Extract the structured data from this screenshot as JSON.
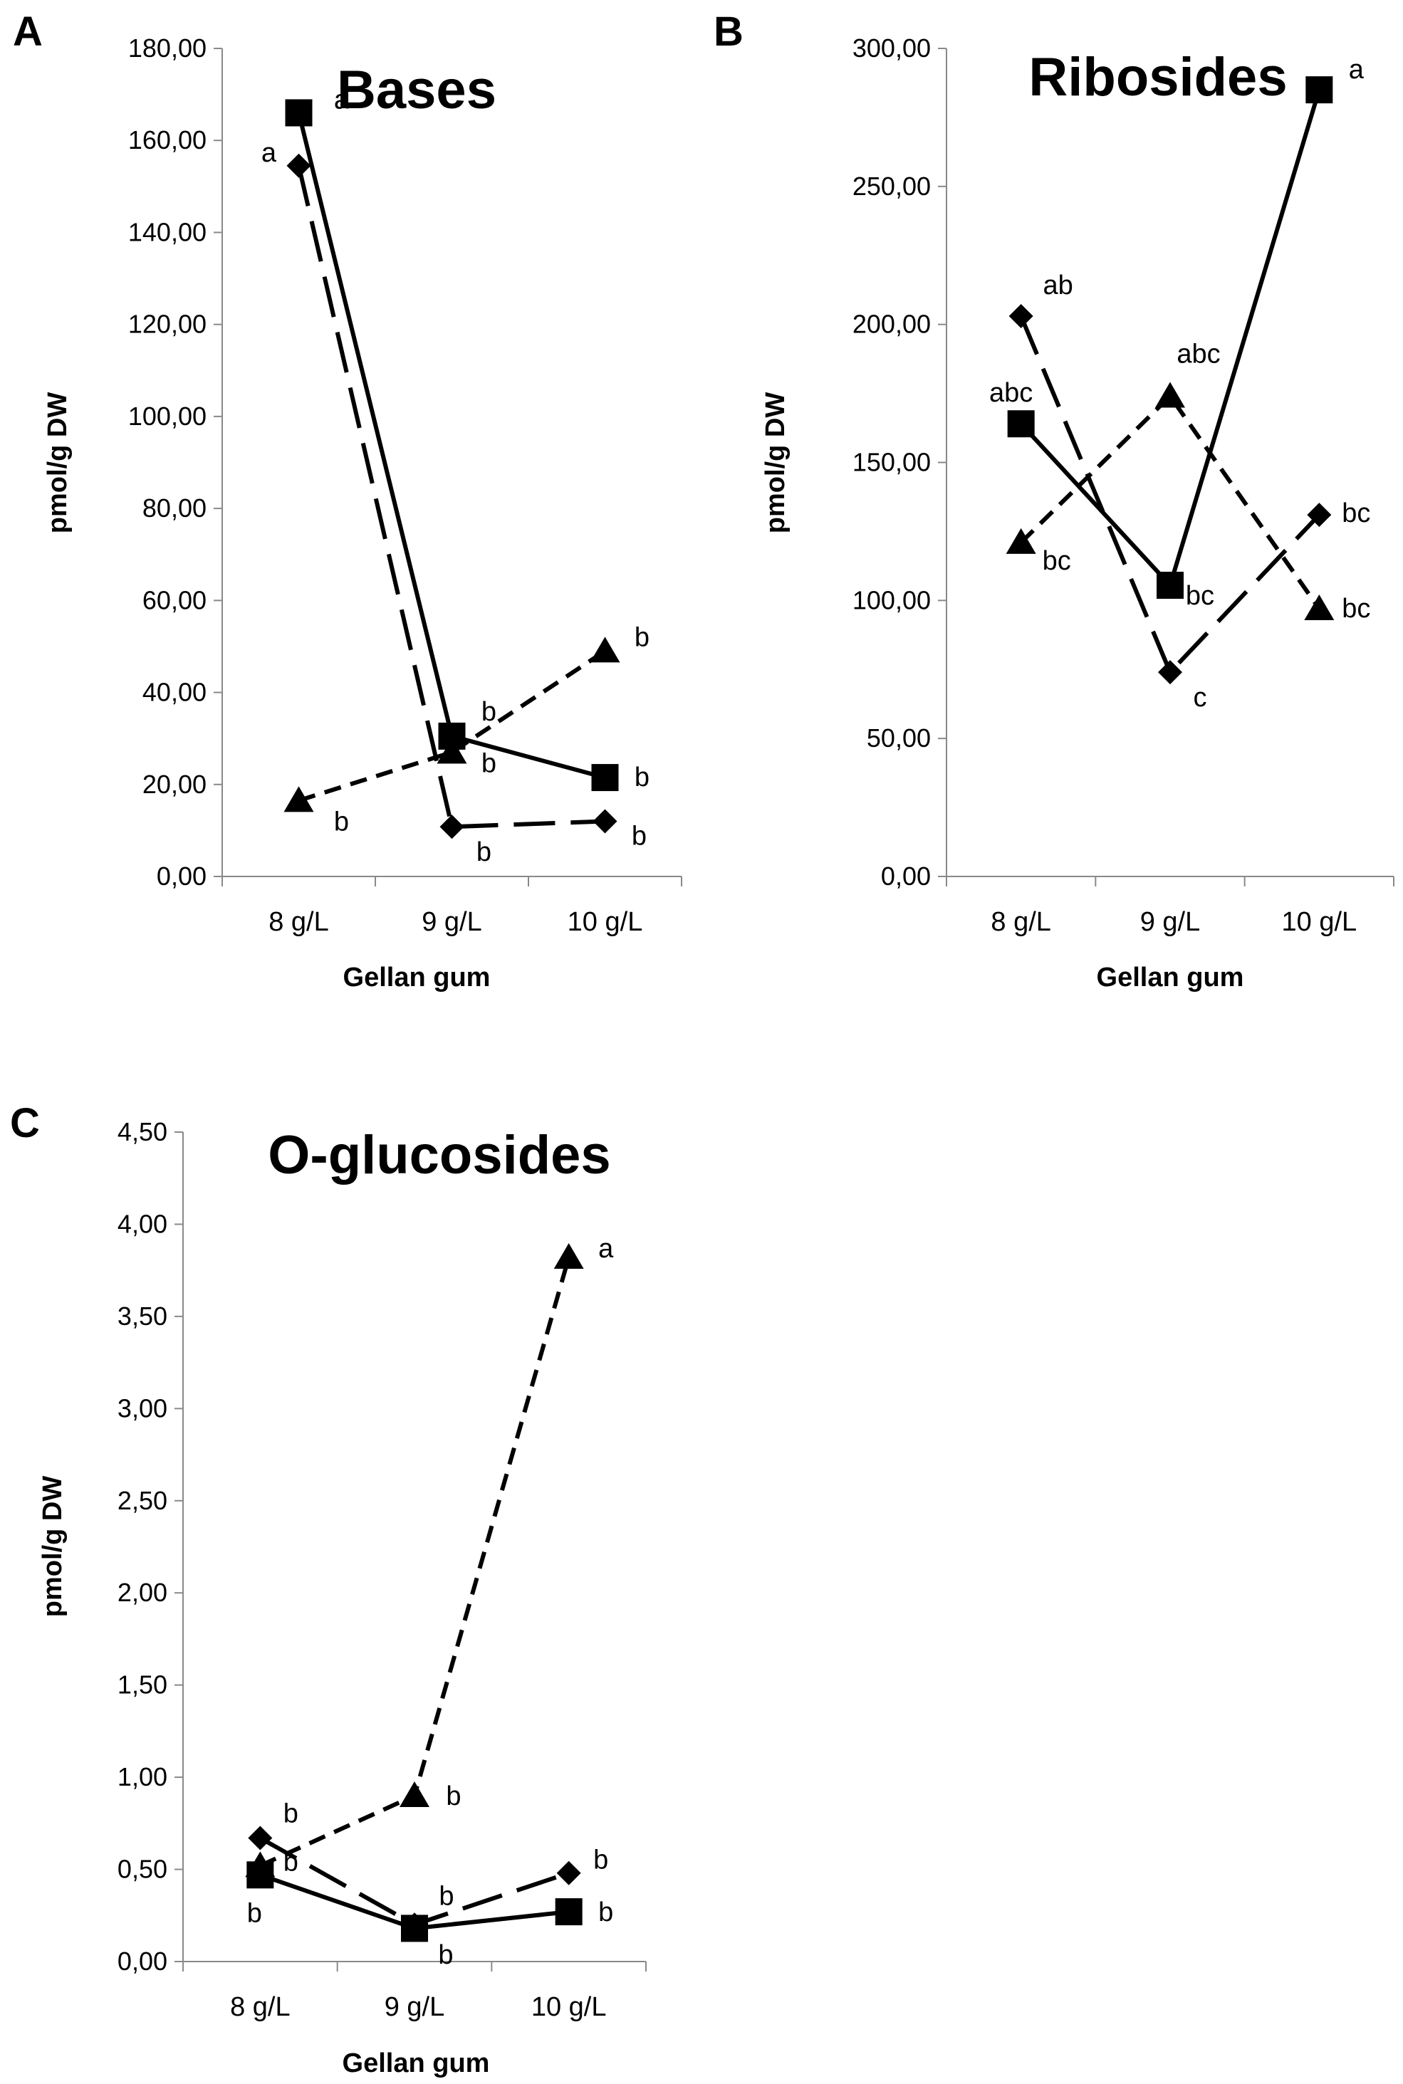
{
  "figure": {
    "colors": {
      "ink": "#000000",
      "axis": "#898989",
      "background": "#ffffff"
    }
  },
  "chart_data": [
    {
      "panel": "A",
      "type": "line",
      "title": "Bases",
      "xlabel": "Gellan gum",
      "ylabel": "pmol/g DW",
      "categories": [
        "8 g/L",
        "9 g/L",
        "10 g/L"
      ],
      "ylim": [
        0,
        180
      ],
      "yticks": [
        "0,00",
        "20,00",
        "40,00",
        "60,00",
        "80,00",
        "100,00",
        "120,00",
        "140,00",
        "160,00",
        "180,00"
      ],
      "grid": false,
      "series": [
        {
          "name": "diamond, long dash",
          "marker": "diamond",
          "line": "long-dash",
          "values": [
            154.5,
            10.8,
            12.0
          ],
          "labels": [
            "a",
            "b",
            "b"
          ]
        },
        {
          "name": "square, solid",
          "marker": "square",
          "line": "solid",
          "values": [
            166.0,
            30.5,
            21.5
          ],
          "labels": [
            "a",
            "b",
            "b"
          ]
        },
        {
          "name": "triangle, short dash",
          "marker": "triangle",
          "line": "short-dash",
          "values": [
            16.5,
            27.0,
            49.0
          ],
          "labels": [
            "b",
            "b",
            "b"
          ]
        }
      ]
    },
    {
      "panel": "B",
      "type": "line",
      "title": "Ribosides",
      "xlabel": "Gellan gum",
      "ylabel": "pmol/g DW",
      "categories": [
        "8 g/L",
        "9 g/L",
        "10 g/L"
      ],
      "ylim": [
        0,
        300
      ],
      "yticks": [
        "0,00",
        "50,00",
        "100,00",
        "150,00",
        "200,00",
        "250,00",
        "300,00"
      ],
      "grid": false,
      "series": [
        {
          "name": "diamond, long dash",
          "marker": "diamond",
          "line": "long-dash",
          "values": [
            203.0,
            74.0,
            131.0
          ],
          "labels": [
            "ab",
            "c",
            "bc"
          ]
        },
        {
          "name": "square, solid",
          "marker": "square",
          "line": "solid",
          "values": [
            164.0,
            105.5,
            285.0
          ],
          "labels": [
            "abc",
            "bc",
            "a"
          ]
        },
        {
          "name": "triangle, short dash",
          "marker": "triangle",
          "line": "short-dash",
          "values": [
            121.0,
            174.0,
            97.0
          ],
          "labels": [
            "bc",
            "abc",
            "bc"
          ]
        }
      ]
    },
    {
      "panel": "C",
      "type": "line",
      "title": "O-glucosides",
      "xlabel": "Gellan gum",
      "ylabel": "pmol/g DW",
      "categories": [
        "8 g/L",
        "9 g/L",
        "10 g/L"
      ],
      "ylim": [
        0,
        4.5
      ],
      "yticks": [
        "0,00",
        "0,50",
        "1,00",
        "1,50",
        "2,00",
        "2,50",
        "3,00",
        "3,50",
        "4,00",
        "4,50"
      ],
      "grid": false,
      "series": [
        {
          "name": "diamond, long dash",
          "marker": "diamond",
          "line": "long-dash",
          "values": [
            0.67,
            0.2,
            0.48
          ],
          "labels": [
            "b",
            "b",
            "b"
          ]
        },
        {
          "name": "square, solid",
          "marker": "square",
          "line": "solid",
          "values": [
            0.47,
            0.18,
            0.27
          ],
          "labels": [
            "b",
            "b",
            "b"
          ]
        },
        {
          "name": "triangle, short dash",
          "marker": "triangle",
          "line": "short-dash",
          "values": [
            0.52,
            0.9,
            3.82
          ],
          "labels": [
            "b",
            "b",
            "a"
          ]
        }
      ]
    }
  ]
}
